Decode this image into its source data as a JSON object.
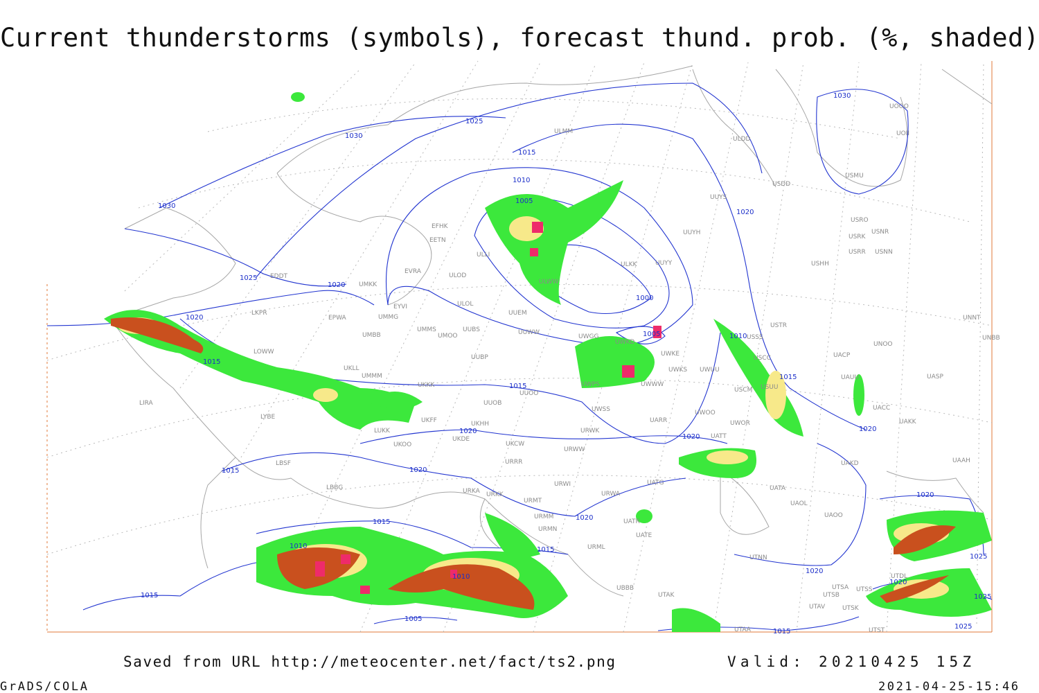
{
  "title": "Current thunderstorms (symbols), forecast thund. prob. (%, shaded)",
  "footer": {
    "source": "Saved from URL http://meteocenter.net/fact/ts2.png",
    "valid": "Valid: 20210425 15Z",
    "software": "GrADS/COLA",
    "timestamp": "2021-04-25-15:46"
  },
  "isobar_labels": [
    "1030",
    "1025",
    "1030",
    "1015",
    "1010",
    "1005",
    "1030",
    "1025",
    "1020",
    "1020",
    "1015",
    "1000",
    "1005",
    "1010",
    "1020",
    "1015",
    "1020",
    "1015",
    "1020",
    "1020",
    "1020",
    "1015",
    "1015",
    "1010",
    "1020",
    "1015",
    "1010",
    "1005",
    "1015",
    "1020",
    "1015",
    "1020",
    "1025",
    "1020",
    "1025",
    "1025"
  ],
  "stations": [
    "EFHK",
    "EETN",
    "EVRA",
    "ULOD",
    "ULOL",
    "ULLI",
    "UUEM",
    "UMKK",
    "EYVI",
    "UMMG",
    "UMMS",
    "UMOO",
    "UUBS",
    "UMBB",
    "EPWA",
    "EDDT",
    "LKPR",
    "LOWW",
    "UUWW",
    "UWGG",
    "UWKD",
    "UWKE",
    "UWKS",
    "UWUU",
    "UWWW",
    "UWPS",
    "ULWW",
    "ULKK",
    "UUYY",
    "UUYH",
    "UUYS",
    "ULDD",
    "ULMM",
    "USSS",
    "USCC",
    "USUU",
    "USCM",
    "USTR",
    "USHH",
    "USRR",
    "USNN",
    "USRK",
    "USNR",
    "USRO",
    "USMU",
    "USDD",
    "UOOO",
    "UOII",
    "UNNT",
    "UNBB",
    "UNOO",
    "UKKK",
    "UKLL",
    "UUOO",
    "UUOB",
    "UKHH",
    "UKFF",
    "UKDE",
    "UKCW",
    "URRR",
    "URKA",
    "URKK",
    "URMT",
    "URWI",
    "URWA",
    "URMM",
    "URMN",
    "URML",
    "UBBB",
    "UWSS",
    "UWOO",
    "UWOR",
    "UARR",
    "UATT",
    "URWW",
    "URWK",
    "UATG",
    "UATA",
    "UAOL",
    "UAOO",
    "UAKD",
    "UAAH",
    "UACC",
    "UAKK",
    "UASP",
    "UAUU",
    "UACP",
    "UATR",
    "UATE",
    "UTAK",
    "UTNN",
    "UTSA",
    "UTSB",
    "UTSS",
    "UTAV",
    "UTSK",
    "UTAA",
    "UTST",
    "UTDL",
    "LIRA",
    "LYBE",
    "LBSF",
    "LBBG",
    "LUKK",
    "UKOO",
    "UMMM",
    "UUBP"
  ]
}
